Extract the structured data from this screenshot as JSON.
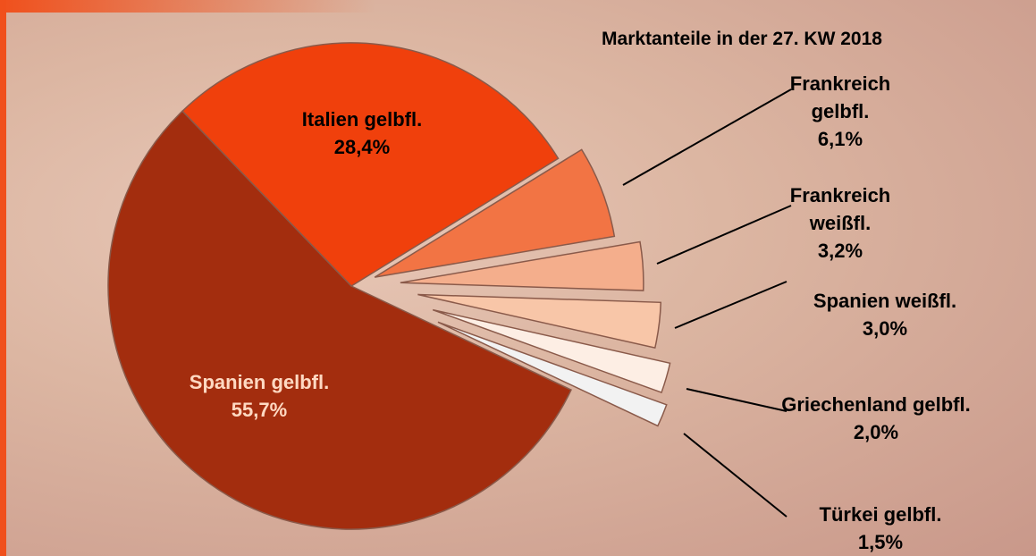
{
  "chart_data": {
    "type": "pie",
    "title": "Marktanteile in der 27. KW 2018",
    "categories": [
      "Italien gelbfl.",
      "Frankreich gelbfl.",
      "Frankreich weißfl.",
      "Spanien weißfl.",
      "Griechenland gelbfl.",
      "Türkei gelbfl.",
      "Spanien gelbfl."
    ],
    "values": [
      28.4,
      6.1,
      3.2,
      3.0,
      2.0,
      1.5,
      55.7
    ],
    "value_labels": [
      "28,4%",
      "6,1%",
      "3,2%",
      "3,0%",
      "2,0%",
      "1,5%",
      "55,7%"
    ],
    "colors": [
      "#f0400c",
      "#f27444",
      "#f4ae8c",
      "#f8c6a8",
      "#fdeee4",
      "#f2f2f2",
      "#a32d0e"
    ]
  }
}
